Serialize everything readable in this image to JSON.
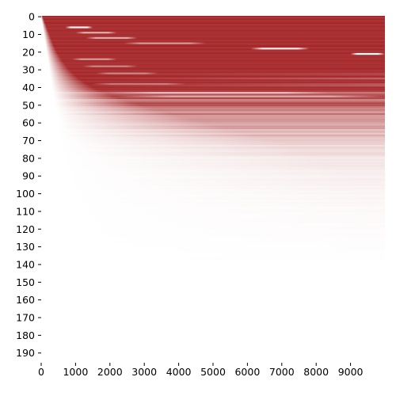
{
  "chart_data": {
    "type": "heatmap",
    "title": "",
    "xlabel": "",
    "ylabel": "",
    "rows": 196,
    "columns": 10000,
    "xlim": [
      0,
      10000
    ],
    "ylim": [
      0,
      196
    ],
    "x_ticks": [
      0,
      1000,
      2000,
      3000,
      4000,
      5000,
      6000,
      7000,
      8000,
      9000
    ],
    "x_tick_labels": [
      "0",
      "1000",
      "2000",
      "3000",
      "4000",
      "5000",
      "6000",
      "7000",
      "8000",
      "9000"
    ],
    "y_ticks": [
      0,
      10,
      20,
      30,
      40,
      50,
      60,
      70,
      80,
      90,
      100,
      110,
      120,
      130,
      140,
      150,
      160,
      170,
      180,
      190
    ],
    "y_tick_labels": [
      "0",
      "10",
      "20",
      "30",
      "40",
      "50",
      "60",
      "70",
      "80",
      "90",
      "100",
      "110",
      "120",
      "130",
      "140",
      "150",
      "160",
      "170",
      "180",
      "190"
    ],
    "colorbar": false,
    "grid": false,
    "colormap": {
      "low": "#ffffff",
      "high": "#a6292b"
    },
    "row_profiles": [
      {
        "row": 0,
        "start": 0,
        "full_at": 40,
        "fade_end": 10000,
        "tail_opacity": 1.0
      },
      {
        "row": 5,
        "start": 40,
        "full_at": 140,
        "fade_end": 10000,
        "tail_opacity": 1.0
      },
      {
        "row": 10,
        "start": 80,
        "full_at": 240,
        "fade_end": 10000,
        "tail_opacity": 1.0
      },
      {
        "row": 15,
        "start": 120,
        "full_at": 340,
        "fade_end": 10000,
        "tail_opacity": 1.0
      },
      {
        "row": 20,
        "start": 160,
        "full_at": 460,
        "fade_end": 10000,
        "tail_opacity": 1.0
      },
      {
        "row": 25,
        "start": 200,
        "full_at": 620,
        "fade_end": 10000,
        "tail_opacity": 1.0
      },
      {
        "row": 30,
        "start": 240,
        "full_at": 820,
        "fade_end": 10000,
        "tail_opacity": 1.0
      },
      {
        "row": 35,
        "start": 280,
        "full_at": 1100,
        "fade_end": 10000,
        "tail_opacity": 0.97
      },
      {
        "row": 40,
        "start": 320,
        "full_at": 1500,
        "fade_end": 10000,
        "tail_opacity": 0.93
      },
      {
        "row": 45,
        "start": 360,
        "full_at": 2100,
        "fade_end": 10000,
        "tail_opacity": 0.82
      },
      {
        "row": 50,
        "start": 400,
        "full_at": 2900,
        "fade_end": 10000,
        "tail_opacity": 0.7
      },
      {
        "row": 55,
        "start": 440,
        "full_at": 3800,
        "fade_end": 10000,
        "tail_opacity": 0.58
      },
      {
        "row": 60,
        "start": 480,
        "full_at": 4800,
        "fade_end": 10000,
        "tail_opacity": 0.46
      },
      {
        "row": 65,
        "start": 520,
        "full_at": 5800,
        "fade_end": 10000,
        "tail_opacity": 0.35
      },
      {
        "row": 70,
        "start": 560,
        "full_at": 6800,
        "fade_end": 10000,
        "tail_opacity": 0.26
      },
      {
        "row": 75,
        "start": 600,
        "full_at": 7600,
        "fade_end": 10000,
        "tail_opacity": 0.19
      },
      {
        "row": 80,
        "start": 640,
        "full_at": 8200,
        "fade_end": 10000,
        "tail_opacity": 0.13
      },
      {
        "row": 90,
        "start": 720,
        "full_at": 9000,
        "fade_end": 10000,
        "tail_opacity": 0.08
      },
      {
        "row": 100,
        "start": 800,
        "full_at": 9500,
        "fade_end": 10000,
        "tail_opacity": 0.05
      },
      {
        "row": 110,
        "start": 880,
        "full_at": 9800,
        "fade_end": 10000,
        "tail_opacity": 0.03
      },
      {
        "row": 120,
        "start": 960,
        "full_at": 10000,
        "fade_end": 10000,
        "tail_opacity": 0.02
      },
      {
        "row": 130,
        "start": 1040,
        "full_at": 10000,
        "fade_end": 10000,
        "tail_opacity": 0.01
      },
      {
        "row": 140,
        "start": 1120,
        "full_at": 10000,
        "fade_end": 10000,
        "tail_opacity": 0.0
      },
      {
        "row": 195,
        "start": 1560,
        "full_at": 10000,
        "fade_end": 10000,
        "tail_opacity": 0.0
      }
    ],
    "white_streaks": [
      {
        "row": 6,
        "start": 700,
        "end": 1500,
        "strength": 0.9
      },
      {
        "row": 9,
        "start": 1000,
        "end": 2200,
        "strength": 0.6
      },
      {
        "row": 12,
        "start": 1300,
        "end": 2800,
        "strength": 0.6
      },
      {
        "row": 15,
        "start": 2400,
        "end": 4800,
        "strength": 0.5
      },
      {
        "row": 18,
        "start": 6100,
        "end": 7800,
        "strength": 0.9
      },
      {
        "row": 21,
        "start": 9000,
        "end": 10000,
        "strength": 1.0
      },
      {
        "row": 24,
        "start": 900,
        "end": 2200,
        "strength": 0.5
      },
      {
        "row": 28,
        "start": 1200,
        "end": 2800,
        "strength": 0.4
      },
      {
        "row": 32,
        "start": 1600,
        "end": 3400,
        "strength": 0.4
      },
      {
        "row": 38,
        "start": 1500,
        "end": 4200,
        "strength": 0.35
      },
      {
        "row": 43,
        "start": 2000,
        "end": 8400,
        "strength": 0.5
      },
      {
        "row": 45,
        "start": 2200,
        "end": 10000,
        "strength": 0.55
      }
    ]
  }
}
